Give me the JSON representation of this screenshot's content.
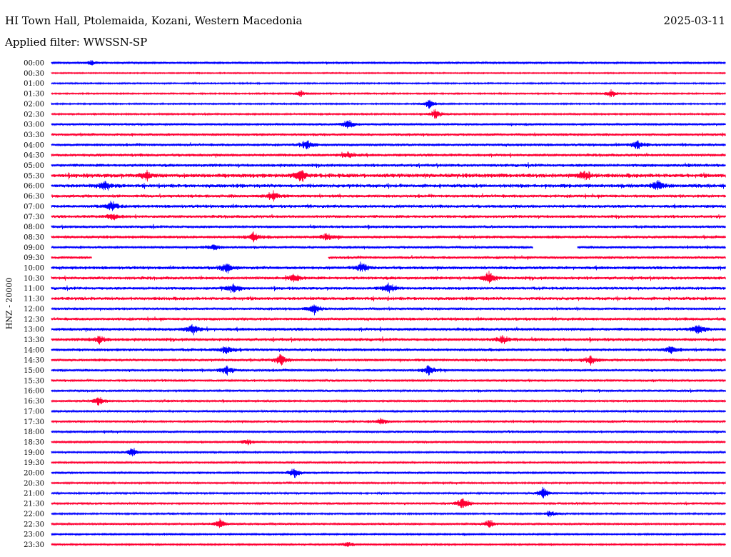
{
  "header": {
    "title": "HI Town Hall, Ptolemaida, Kozani, Western Macedonia",
    "date": "2025-03-11",
    "filter": "Applied filter: WWSSN-SP"
  },
  "chart_data": {
    "type": "line",
    "title": "HI Town Hall, Ptolemaida, Kozani, Western Macedonia",
    "ylabel": "HNZ - 20000",
    "colors": [
      "#0000ff",
      "#ff0033"
    ],
    "rows": [
      "00:00",
      "00:30",
      "01:00",
      "01:30",
      "02:00",
      "02:30",
      "03:00",
      "03:30",
      "04:00",
      "04:30",
      "05:00",
      "05:30",
      "06:00",
      "06:30",
      "07:00",
      "07:30",
      "08:00",
      "08:30",
      "09:00",
      "09:30",
      "10:00",
      "10:30",
      "11:00",
      "11:30",
      "12:00",
      "12:30",
      "13:00",
      "13:30",
      "14:00",
      "14:30",
      "15:00",
      "15:30",
      "16:00",
      "16:30",
      "17:00",
      "17:30",
      "18:00",
      "18:30",
      "19:00",
      "19:30",
      "20:00",
      "20:30",
      "21:00",
      "21:30",
      "22:00",
      "22:30",
      "23:00",
      "23:30"
    ],
    "row_noise_level": [
      0.25,
      0.1,
      0.15,
      0.15,
      0.15,
      0.2,
      0.35,
      0.45,
      0.5,
      0.55,
      0.6,
      0.85,
      0.75,
      0.6,
      0.6,
      0.55,
      0.5,
      0.55,
      0.45,
      0.5,
      0.6,
      0.6,
      0.55,
      0.65,
      0.45,
      0.55,
      0.6,
      0.6,
      0.55,
      0.5,
      0.45,
      0.35,
      0.35,
      0.35,
      0.3,
      0.35,
      0.35,
      0.3,
      0.25,
      0.25,
      0.25,
      0.25,
      0.25,
      0.3,
      0.2,
      0.3,
      0.2,
      0.2
    ],
    "gaps": [
      {
        "row": "09:00",
        "from": 0.715,
        "to": 0.78
      },
      {
        "row": "09:30",
        "from": 0.06,
        "to": 0.41
      }
    ],
    "events": [
      {
        "row": "00:00",
        "at": 0.06,
        "amp": 0.5
      },
      {
        "row": "01:30",
        "at": 0.37,
        "amp": 0.6
      },
      {
        "row": "01:30",
        "at": 0.83,
        "amp": 0.8
      },
      {
        "row": "02:00",
        "at": 0.56,
        "amp": 0.9
      },
      {
        "row": "02:30",
        "at": 0.57,
        "amp": 0.9
      },
      {
        "row": "03:00",
        "at": 0.44,
        "amp": 1.0
      },
      {
        "row": "04:00",
        "at": 0.38,
        "amp": 0.9
      },
      {
        "row": "04:00",
        "at": 0.87,
        "amp": 0.9
      },
      {
        "row": "04:30",
        "at": 0.44,
        "amp": 0.7
      },
      {
        "row": "05:30",
        "at": 0.37,
        "amp": 1.3
      },
      {
        "row": "05:30",
        "at": 0.14,
        "amp": 0.7
      },
      {
        "row": "05:30",
        "at": 0.79,
        "amp": 0.8
      },
      {
        "row": "06:00",
        "at": 0.08,
        "amp": 0.9
      },
      {
        "row": "06:00",
        "at": 0.9,
        "amp": 0.9
      },
      {
        "row": "06:30",
        "at": 0.33,
        "amp": 0.9
      },
      {
        "row": "07:00",
        "at": 0.09,
        "amp": 1.0
      },
      {
        "row": "07:30",
        "at": 0.09,
        "amp": 0.7
      },
      {
        "row": "08:30",
        "at": 0.3,
        "amp": 0.8
      },
      {
        "row": "08:30",
        "at": 0.41,
        "amp": 0.8
      },
      {
        "row": "09:00",
        "at": 0.24,
        "amp": 0.6
      },
      {
        "row": "10:00",
        "at": 0.26,
        "amp": 1.0
      },
      {
        "row": "10:00",
        "at": 0.46,
        "amp": 0.9
      },
      {
        "row": "10:30",
        "at": 0.65,
        "amp": 1.2
      },
      {
        "row": "10:30",
        "at": 0.36,
        "amp": 0.8
      },
      {
        "row": "11:00",
        "at": 0.27,
        "amp": 0.9
      },
      {
        "row": "11:00",
        "at": 0.5,
        "amp": 0.9
      },
      {
        "row": "12:00",
        "at": 0.39,
        "amp": 1.0
      },
      {
        "row": "13:00",
        "at": 0.21,
        "amp": 1.0
      },
      {
        "row": "13:00",
        "at": 0.96,
        "amp": 1.0
      },
      {
        "row": "13:30",
        "at": 0.07,
        "amp": 0.8
      },
      {
        "row": "13:30",
        "at": 0.67,
        "amp": 0.8
      },
      {
        "row": "14:00",
        "at": 0.26,
        "amp": 0.9
      },
      {
        "row": "14:00",
        "at": 0.92,
        "amp": 0.8
      },
      {
        "row": "14:30",
        "at": 0.34,
        "amp": 1.0
      },
      {
        "row": "14:30",
        "at": 0.8,
        "amp": 0.8
      },
      {
        "row": "15:00",
        "at": 0.26,
        "amp": 0.9
      },
      {
        "row": "15:00",
        "at": 0.56,
        "amp": 0.9
      },
      {
        "row": "16:30",
        "at": 0.07,
        "amp": 1.0
      },
      {
        "row": "17:30",
        "at": 0.49,
        "amp": 0.7
      },
      {
        "row": "18:30",
        "at": 0.29,
        "amp": 0.6
      },
      {
        "row": "19:00",
        "at": 0.12,
        "amp": 0.8
      },
      {
        "row": "20:00",
        "at": 0.36,
        "amp": 1.0
      },
      {
        "row": "21:00",
        "at": 0.73,
        "amp": 1.1
      },
      {
        "row": "21:30",
        "at": 0.61,
        "amp": 1.3
      },
      {
        "row": "22:00",
        "at": 0.74,
        "amp": 0.6
      },
      {
        "row": "22:30",
        "at": 0.25,
        "amp": 1.0
      },
      {
        "row": "22:30",
        "at": 0.65,
        "amp": 0.8
      },
      {
        "row": "23:30",
        "at": 0.44,
        "amp": 0.6
      }
    ]
  }
}
